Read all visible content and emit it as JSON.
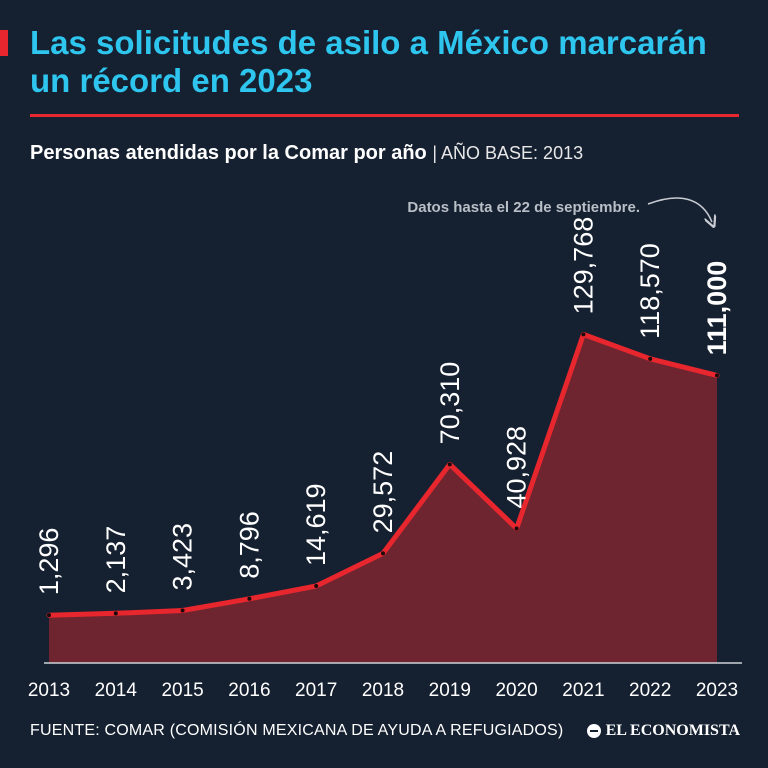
{
  "header": {
    "title": "Las solicitudes de asilo a México marcarán un récord en 2023",
    "subtitle": "Personas atendidas por la Comar por año",
    "subtitle_note": "| AÑO BASE: 2013"
  },
  "annotation": {
    "text": "Datos hasta el 22 de septiembre."
  },
  "footer": {
    "source": "FUENTE: COMAR (COMISIÓN MEXICANA DE AYUDA A REFUGIADOS)",
    "brand": "EL ECONOMISTA"
  },
  "colors": {
    "background": "#152030",
    "title": "#2ec5ee",
    "accent_red": "#e8262d",
    "area_fill": "#6e2530"
  },
  "chart_data": {
    "type": "area",
    "title": "Personas atendidas por la Comar por año",
    "xlabel": "",
    "ylabel": "",
    "categories": [
      "2013",
      "2014",
      "2015",
      "2016",
      "2017",
      "2018",
      "2019",
      "2020",
      "2021",
      "2022",
      "2023"
    ],
    "values": [
      1296,
      2137,
      3423,
      8796,
      14619,
      29572,
      70310,
      40928,
      129768,
      118570,
      111000
    ],
    "labels": [
      "1,296",
      "2,137",
      "3,423",
      "8,796",
      "14,619",
      "29,572",
      "70,310",
      "40,928",
      "129,768",
      "118,570",
      "111,000"
    ],
    "highlight_index": 10,
    "ylim": [
      0,
      140000
    ],
    "grid": false
  }
}
